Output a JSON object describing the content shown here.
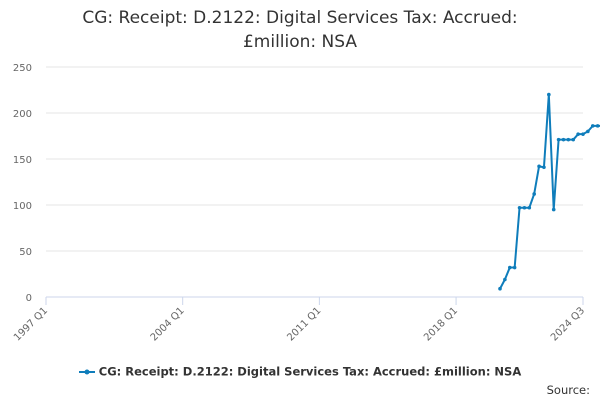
{
  "title_line1": "CG: Receipt: D.2122: Digital Services Tax: Accrued:",
  "title_line2": "£million: NSA",
  "credit": "Source:",
  "chart_data": {
    "type": "line",
    "title": "CG: Receipt: D.2122: Digital Services Tax: Accrued: £million: NSA",
    "xlabel": "",
    "ylabel": "",
    "x_ticks": [
      "1997 Q1",
      "2004 Q1",
      "2011 Q1",
      "2018 Q1",
      "2024 Q3"
    ],
    "y_ticks": [
      0,
      50,
      100,
      150,
      200,
      250
    ],
    "ylim": [
      0,
      250
    ],
    "xlim": [
      "1997 Q1",
      "2024 Q3"
    ],
    "grid": "horizontal",
    "legend_position": "bottom",
    "series": [
      {
        "name": "CG: Receipt: D.2122: Digital Services Tax: Accrued: £million: NSA",
        "color": "#0f7dbb",
        "x": [
          "2020 Q2",
          "2020 Q3",
          "2020 Q4",
          "2021 Q1",
          "2021 Q2",
          "2021 Q3",
          "2021 Q4",
          "2022 Q1",
          "2022 Q2",
          "2022 Q3",
          "2022 Q4",
          "2023 Q1",
          "2023 Q2",
          "2023 Q3",
          "2023 Q4",
          "2024 Q1",
          "2024 Q2",
          "2024 Q3",
          "2024 Q4",
          "2025 Q1",
          "2025 Q2",
          "2025 Q3",
          "2025 Q4"
        ],
        "values": [
          9,
          19,
          32,
          32,
          97,
          97,
          97,
          112,
          142,
          141,
          220,
          95,
          171,
          171,
          171,
          171,
          177,
          177,
          180,
          186,
          186,
          186,
          186
        ]
      }
    ]
  }
}
